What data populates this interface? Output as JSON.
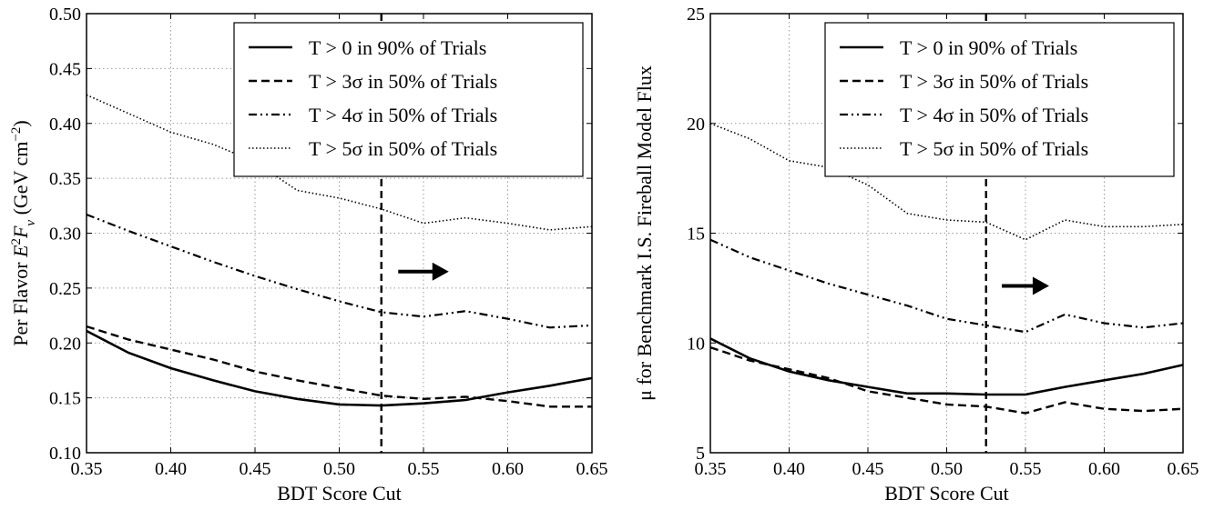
{
  "chart_data": [
    {
      "type": "line",
      "xlabel": "BDT Score Cut",
      "ylabel": "Per Flavor E²F_ν (GeV cm⁻²)",
      "ylabel_parts": {
        "pre": "Per Flavor ",
        "E": "E",
        "exp": "2",
        "F": "F",
        "sub": "ν",
        "unit_pre": " (GeV cm",
        "unit_exp": "−2",
        "unit_post": ")"
      },
      "xlim": [
        0.35,
        0.65
      ],
      "ylim": [
        0.1,
        0.5
      ],
      "xticks": [
        "0.35",
        "0.40",
        "0.45",
        "0.50",
        "0.55",
        "0.60",
        "0.65"
      ],
      "yticks": [
        "0.10",
        "0.15",
        "0.20",
        "0.25",
        "0.30",
        "0.35",
        "0.40",
        "0.45",
        "0.50"
      ],
      "grid": true,
      "legend_position": "top-right",
      "vline_x": 0.525,
      "arrow": {
        "x1": 0.535,
        "x2": 0.565,
        "y": 0.265
      },
      "x": [
        0.35,
        0.375,
        0.4,
        0.425,
        0.45,
        0.475,
        0.5,
        0.525,
        0.55,
        0.575,
        0.6,
        0.625,
        0.65
      ],
      "series": [
        {
          "name": "T > 0 in 90% of Trials",
          "style": "solid",
          "values": [
            0.211,
            0.191,
            0.177,
            0.166,
            0.156,
            0.149,
            0.144,
            0.143,
            0.145,
            0.148,
            0.155,
            0.161,
            0.168
          ]
        },
        {
          "name": "T > 3σ in 50% of Trials",
          "style": "dashed",
          "values": [
            0.215,
            0.203,
            0.194,
            0.185,
            0.174,
            0.166,
            0.159,
            0.152,
            0.149,
            0.151,
            0.147,
            0.142,
            0.142
          ]
        },
        {
          "name": "T > 4σ in 50% of Trials",
          "style": "dashdot",
          "values": [
            0.317,
            0.302,
            0.288,
            0.274,
            0.261,
            0.249,
            0.238,
            0.228,
            0.224,
            0.229,
            0.222,
            0.214,
            0.216
          ]
        },
        {
          "name": "T > 5σ in 50% of Trials",
          "style": "dotted",
          "values": [
            0.426,
            0.409,
            0.392,
            0.381,
            0.365,
            0.339,
            0.332,
            0.322,
            0.309,
            0.314,
            0.309,
            0.303,
            0.306
          ]
        }
      ]
    },
    {
      "type": "line",
      "xlabel": "BDT Score Cut",
      "ylabel": "μ for Benchmark I.S. Fireball Model Flux",
      "xlim": [
        0.35,
        0.65
      ],
      "ylim": [
        5,
        25
      ],
      "xticks": [
        "0.35",
        "0.40",
        "0.45",
        "0.50",
        "0.55",
        "0.60",
        "0.65"
      ],
      "yticks": [
        "5",
        "10",
        "15",
        "20",
        "25"
      ],
      "grid": true,
      "legend_position": "top-right",
      "vline_x": 0.525,
      "arrow": {
        "x1": 0.535,
        "x2": 0.565,
        "y": 12.6
      },
      "x": [
        0.35,
        0.375,
        0.4,
        0.425,
        0.45,
        0.475,
        0.5,
        0.525,
        0.55,
        0.575,
        0.6,
        0.625,
        0.65
      ],
      "series": [
        {
          "name": "T > 0 in 90% of Trials",
          "style": "solid",
          "values": [
            10.2,
            9.3,
            8.7,
            8.3,
            8.0,
            7.7,
            7.7,
            7.65,
            7.65,
            8.0,
            8.3,
            8.6,
            9.0
          ]
        },
        {
          "name": "T > 3σ in 50% of Trials",
          "style": "dashed",
          "values": [
            9.8,
            9.2,
            8.8,
            8.4,
            7.8,
            7.5,
            7.2,
            7.1,
            6.8,
            7.3,
            7.0,
            6.9,
            7.0
          ]
        },
        {
          "name": "T > 4σ in 50% of Trials",
          "style": "dashdot",
          "values": [
            14.7,
            13.9,
            13.3,
            12.7,
            12.2,
            11.7,
            11.1,
            10.8,
            10.5,
            11.3,
            10.9,
            10.7,
            10.9
          ]
        },
        {
          "name": "T > 5σ in 50% of Trials",
          "style": "dotted",
          "values": [
            20.0,
            19.3,
            18.3,
            18.0,
            17.2,
            15.9,
            15.6,
            15.5,
            14.7,
            15.6,
            15.3,
            15.3,
            15.4
          ]
        }
      ]
    }
  ]
}
